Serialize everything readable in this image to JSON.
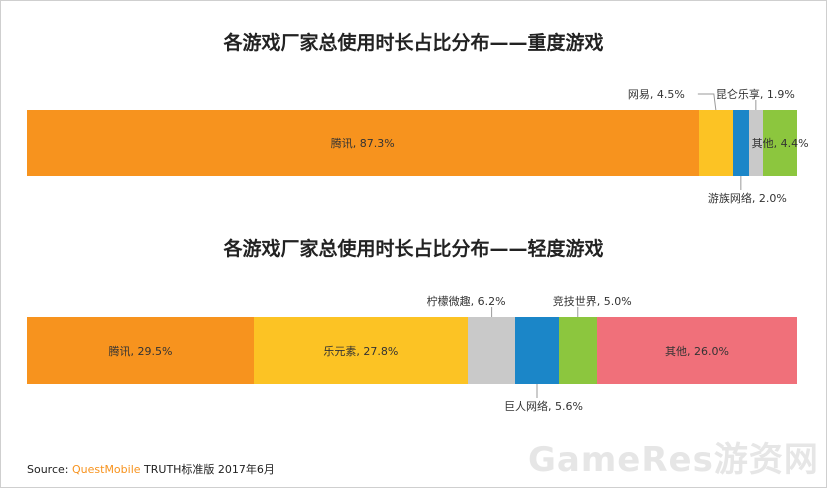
{
  "colors": {
    "tencent": "#f7931e",
    "netease": "#fcc324",
    "youzu": "#1b86c8",
    "kunlun": "#c9c9c9",
    "other_heavy": "#8cc63e",
    "lemon": "#c9c9c9",
    "juren": "#1b86c8",
    "jingji": "#8cc63e",
    "other_light": "#f0707a",
    "leyuansu": "#fcc324"
  },
  "chart_data": [
    {
      "type": "bar",
      "title": "各游戏厂家总使用时长占比分布——重度游戏",
      "orientation": "horizontal-stacked-100",
      "segments": [
        {
          "name": "腾讯",
          "value": 87.3,
          "label": "腾讯, 87.3%",
          "color_key": "tencent",
          "placement": "inside"
        },
        {
          "name": "网易",
          "value": 4.5,
          "label": "网易, 4.5%",
          "color_key": "netease",
          "placement": "above"
        },
        {
          "name": "游族网络",
          "value": 2.0,
          "label": "游族网络, 2.0%",
          "color_key": "youzu",
          "placement": "below"
        },
        {
          "name": "昆仑乐享",
          "value": 1.9,
          "label": "昆仑乐享, 1.9%",
          "color_key": "kunlun",
          "placement": "above"
        },
        {
          "name": "其他",
          "value": 4.4,
          "label": "其他, 4.4%",
          "color_key": "other_heavy",
          "placement": "inside"
        }
      ]
    },
    {
      "type": "bar",
      "title": "各游戏厂家总使用时长占比分布——轻度游戏",
      "orientation": "horizontal-stacked-100",
      "segments": [
        {
          "name": "腾讯",
          "value": 29.5,
          "label": "腾讯, 29.5%",
          "color_key": "tencent",
          "placement": "inside"
        },
        {
          "name": "乐元素",
          "value": 27.8,
          "label": "乐元素, 27.8%",
          "color_key": "leyuansu",
          "placement": "inside"
        },
        {
          "name": "柠檬微趣",
          "value": 6.2,
          "label": "柠檬微趣, 6.2%",
          "color_key": "lemon",
          "placement": "above"
        },
        {
          "name": "巨人网络",
          "value": 5.6,
          "label": "巨人网络, 5.6%",
          "color_key": "juren",
          "placement": "below"
        },
        {
          "name": "竞技世界",
          "value": 5.0,
          "label": "竞技世界, 5.0%",
          "color_key": "jingji",
          "placement": "above"
        },
        {
          "name": "其他",
          "value": 26.0,
          "label": "其他, 26.0%",
          "color_key": "other_light",
          "placement": "inside"
        }
      ]
    }
  ],
  "source": {
    "key": "Source:",
    "brand": "QuestMobile",
    "text": "TRUTH标准版 2017年6月"
  },
  "watermark": "GameRes游资网"
}
